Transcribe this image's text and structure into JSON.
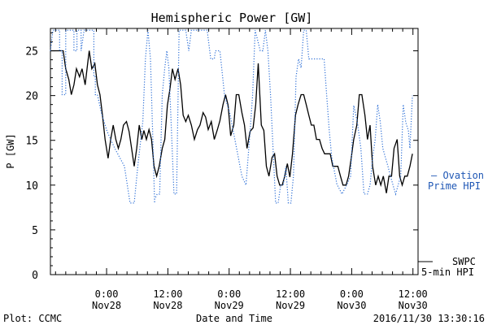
{
  "colors": {
    "swpc": "#000000",
    "ovation": "#2d6fd6",
    "ovation_label": "#1f57b5",
    "axis": "#000000",
    "background": "#ffffff"
  },
  "footer": {
    "left": "Plot: CCMC",
    "right": "2016/11/30 13:30:16"
  },
  "legend": {
    "ovation_line1": "– Ovation",
    "ovation_line2": "Prime HPI",
    "swpc_line1": "SWPC",
    "swpc_line2": "5-min HPI"
  },
  "chart_data": {
    "type": "line",
    "title": "Hemispheric Power [GW]",
    "xlabel": "Date and Time",
    "ylabel": "P [GW]",
    "x_unit": "hours since 2016-11-27 00:00",
    "xlim": [
      13,
      85
    ],
    "ylim": [
      0,
      27.5
    ],
    "grid": false,
    "legend_position": "right",
    "y_ticks": [
      0,
      5,
      10,
      15,
      20,
      25
    ],
    "x_ticks": [
      {
        "x": 24,
        "line1": "0:00",
        "line2": "Nov28"
      },
      {
        "x": 36,
        "line1": "12:00",
        "line2": "Nov28"
      },
      {
        "x": 48,
        "line1": "0:00",
        "line2": "Nov29"
      },
      {
        "x": 60,
        "line1": "12:00",
        "line2": "Nov29"
      },
      {
        "x": 72,
        "line1": "0:00",
        "line2": "Nov30"
      },
      {
        "x": 84,
        "line1": "12:00",
        "line2": "Nov30"
      }
    ],
    "series": [
      {
        "name": "SWPC 5-min HPI",
        "style": "solid",
        "points": [
          [
            13,
            25
          ],
          [
            15.5,
            25
          ],
          [
            16,
            23
          ],
          [
            16.6,
            21.8
          ],
          [
            17.1,
            20.1
          ],
          [
            17.6,
            21.2
          ],
          [
            18.1,
            23
          ],
          [
            18.7,
            22.1
          ],
          [
            19.2,
            23
          ],
          [
            19.8,
            21.2
          ],
          [
            20.3,
            23.6
          ],
          [
            20.6,
            25
          ],
          [
            21.1,
            23
          ],
          [
            21.7,
            23.6
          ],
          [
            22.2,
            21.2
          ],
          [
            22.7,
            20.1
          ],
          [
            23.2,
            17.8
          ],
          [
            23.7,
            15.1
          ],
          [
            24.3,
            13
          ],
          [
            24.8,
            15.1
          ],
          [
            25.3,
            16.7
          ],
          [
            25.8,
            15.1
          ],
          [
            26.3,
            14.1
          ],
          [
            26.8,
            15.1
          ],
          [
            27.3,
            16.7
          ],
          [
            27.9,
            17.1
          ],
          [
            28.4,
            16
          ],
          [
            28.9,
            14.1
          ],
          [
            29.4,
            12.1
          ],
          [
            29.9,
            14.1
          ],
          [
            30.4,
            16.7
          ],
          [
            30.9,
            15.1
          ],
          [
            31.3,
            16.1
          ],
          [
            31.8,
            15.1
          ],
          [
            32.3,
            16.2
          ],
          [
            32.8,
            15.1
          ],
          [
            33.3,
            12.1
          ],
          [
            33.8,
            11
          ],
          [
            34.3,
            12.1
          ],
          [
            34.9,
            14.1
          ],
          [
            35.4,
            15.1
          ],
          [
            35.9,
            18.9
          ],
          [
            36.4,
            20.7
          ],
          [
            36.9,
            23
          ],
          [
            37.4,
            21.8
          ],
          [
            38,
            23
          ],
          [
            38.5,
            21.2
          ],
          [
            39,
            17.8
          ],
          [
            39.5,
            17.1
          ],
          [
            40,
            17.8
          ],
          [
            40.6,
            16.7
          ],
          [
            41.2,
            15.1
          ],
          [
            41.8,
            16.2
          ],
          [
            42.3,
            16.7
          ],
          [
            42.9,
            18.1
          ],
          [
            43.4,
            17.6
          ],
          [
            43.9,
            16.2
          ],
          [
            44.5,
            17.1
          ],
          [
            45.1,
            15.1
          ],
          [
            45.7,
            16.2
          ],
          [
            46.2,
            17.2
          ],
          [
            46.8,
            19
          ],
          [
            47.3,
            20.1
          ],
          [
            47.8,
            18.9
          ],
          [
            48.3,
            15.5
          ],
          [
            48.9,
            16.7
          ],
          [
            49.4,
            20.1
          ],
          [
            49.9,
            20.1
          ],
          [
            50.5,
            18.1
          ],
          [
            51,
            16.7
          ],
          [
            51.5,
            14.1
          ],
          [
            52.1,
            16
          ],
          [
            52.7,
            16.4
          ],
          [
            53.2,
            19
          ],
          [
            53.7,
            23.6
          ],
          [
            54.3,
            16.7
          ],
          [
            54.8,
            16.1
          ],
          [
            55.3,
            12.1
          ],
          [
            55.8,
            11
          ],
          [
            56.4,
            13.1
          ],
          [
            56.9,
            13.5
          ],
          [
            57.4,
            11
          ],
          [
            57.9,
            10
          ],
          [
            58.4,
            10
          ],
          [
            58.9,
            11
          ],
          [
            59.4,
            12.4
          ],
          [
            59.9,
            10.9
          ],
          [
            60.4,
            13.5
          ],
          [
            61,
            17.8
          ],
          [
            61.5,
            19
          ],
          [
            62.1,
            20.1
          ],
          [
            62.6,
            20.1
          ],
          [
            63.1,
            19
          ],
          [
            63.6,
            17.8
          ],
          [
            64.1,
            16.7
          ],
          [
            64.6,
            16.7
          ],
          [
            65.1,
            15.1
          ],
          [
            65.7,
            15.1
          ],
          [
            66.2,
            14.1
          ],
          [
            66.7,
            13.5
          ],
          [
            67.3,
            13.5
          ],
          [
            67.8,
            13.5
          ],
          [
            68.3,
            12.1
          ],
          [
            68.8,
            12.1
          ],
          [
            69.3,
            12.1
          ],
          [
            69.8,
            11
          ],
          [
            70.3,
            10
          ],
          [
            70.9,
            10
          ],
          [
            71.4,
            11
          ],
          [
            71.9,
            13
          ],
          [
            72.4,
            15.1
          ],
          [
            73,
            16.7
          ],
          [
            73.5,
            20.1
          ],
          [
            74,
            20.1
          ],
          [
            74.6,
            17.8
          ],
          [
            75.1,
            15.1
          ],
          [
            75.6,
            16.7
          ],
          [
            76.1,
            12.1
          ],
          [
            76.7,
            10
          ],
          [
            77.2,
            11
          ],
          [
            77.7,
            10
          ],
          [
            78.2,
            11
          ],
          [
            78.8,
            9.1
          ],
          [
            79.3,
            11
          ],
          [
            79.8,
            11
          ],
          [
            80.3,
            14.1
          ],
          [
            80.9,
            15.1
          ],
          [
            81.4,
            11
          ],
          [
            81.9,
            10
          ],
          [
            82.4,
            11
          ],
          [
            82.9,
            11
          ],
          [
            83.4,
            12.1
          ],
          [
            83.9,
            13.5
          ]
        ]
      },
      {
        "name": "Ovation Prime HPI",
        "style": "dotted",
        "points": [
          [
            13,
            25
          ],
          [
            13.5,
            27.3
          ],
          [
            14.8,
            27.3
          ],
          [
            14.8,
            25
          ],
          [
            15.3,
            25
          ],
          [
            15.3,
            20.1
          ],
          [
            16,
            20.1
          ],
          [
            16,
            27.3
          ],
          [
            17.6,
            27.3
          ],
          [
            17.6,
            25
          ],
          [
            18.2,
            25
          ],
          [
            18.2,
            27.3
          ],
          [
            19,
            27.3
          ],
          [
            19,
            25
          ],
          [
            19.6,
            27.3
          ],
          [
            21.5,
            27.3
          ],
          [
            21.5,
            22.1
          ],
          [
            21.8,
            22.1
          ],
          [
            21.8,
            20.1
          ],
          [
            22.2,
            20.1
          ],
          [
            23,
            18
          ],
          [
            24.1,
            16
          ],
          [
            25.6,
            14.1
          ],
          [
            27.5,
            12.1
          ],
          [
            28.6,
            8
          ],
          [
            29.4,
            8
          ],
          [
            30.1,
            12.1
          ],
          [
            31.1,
            17.1
          ],
          [
            31.6,
            24.1
          ],
          [
            32.1,
            27.3
          ],
          [
            32.6,
            24.1
          ],
          [
            33,
            16.1
          ],
          [
            33.4,
            8
          ],
          [
            33.4,
            8.4
          ],
          [
            33.9,
            9
          ],
          [
            34.4,
            9
          ],
          [
            34.9,
            20.1
          ],
          [
            35.4,
            23.1
          ],
          [
            35.8,
            25
          ],
          [
            36.2,
            23.1
          ],
          [
            36.7,
            16.1
          ],
          [
            37.2,
            9
          ],
          [
            37.7,
            9
          ],
          [
            38.2,
            27.3
          ],
          [
            39.5,
            27.3
          ],
          [
            40.1,
            25
          ],
          [
            40.6,
            27.3
          ],
          [
            41.4,
            27.3
          ],
          [
            42.7,
            27.3
          ],
          [
            43.7,
            27.3
          ],
          [
            44.4,
            24.1
          ],
          [
            45.1,
            24.1
          ],
          [
            45.3,
            25
          ],
          [
            46.2,
            25
          ],
          [
            47.1,
            20
          ],
          [
            48.1,
            18.1
          ],
          [
            49.5,
            14
          ],
          [
            50.5,
            11
          ],
          [
            51.3,
            10
          ],
          [
            52.1,
            16
          ],
          [
            52.6,
            20.1
          ],
          [
            53.1,
            27.3
          ],
          [
            54.1,
            25
          ],
          [
            54.6,
            25
          ],
          [
            55.1,
            27.3
          ],
          [
            55.6,
            25
          ],
          [
            56.1,
            20.1
          ],
          [
            56.6,
            14.1
          ],
          [
            57.1,
            8
          ],
          [
            57.6,
            8
          ],
          [
            58.1,
            10
          ],
          [
            58.6,
            10
          ],
          [
            59.1,
            12.1
          ],
          [
            59.6,
            8
          ],
          [
            60.1,
            8
          ],
          [
            60.6,
            11
          ],
          [
            61.1,
            22.1
          ],
          [
            61.6,
            24.1
          ],
          [
            62.1,
            23.1
          ],
          [
            62.6,
            27.3
          ],
          [
            63.1,
            27.3
          ],
          [
            63.6,
            24.1
          ],
          [
            65.6,
            24.1
          ],
          [
            66.6,
            24.1
          ],
          [
            67.1,
            20.1
          ],
          [
            67.6,
            16.1
          ],
          [
            68.1,
            13.1
          ],
          [
            69.1,
            10.1
          ],
          [
            70.1,
            9
          ],
          [
            71.1,
            10.1
          ],
          [
            71.8,
            11
          ],
          [
            72.4,
            18.9
          ],
          [
            73.1,
            17.1
          ],
          [
            73.8,
            14.1
          ],
          [
            74.4,
            9
          ],
          [
            75.1,
            9
          ],
          [
            75.6,
            10
          ],
          [
            76.1,
            13
          ],
          [
            76.6,
            15.1
          ],
          [
            77.1,
            19
          ],
          [
            77.6,
            17.1
          ],
          [
            78.1,
            14.1
          ],
          [
            78.6,
            13.1
          ],
          [
            79.1,
            12.1
          ],
          [
            79.6,
            11
          ],
          [
            80.1,
            10
          ],
          [
            80.6,
            9
          ],
          [
            81.1,
            10
          ],
          [
            81.6,
            11
          ],
          [
            82.1,
            19
          ],
          [
            82.6,
            17
          ],
          [
            83.1,
            16.1
          ],
          [
            83.4,
            14.1
          ],
          [
            83.9,
            20
          ]
        ]
      }
    ]
  }
}
